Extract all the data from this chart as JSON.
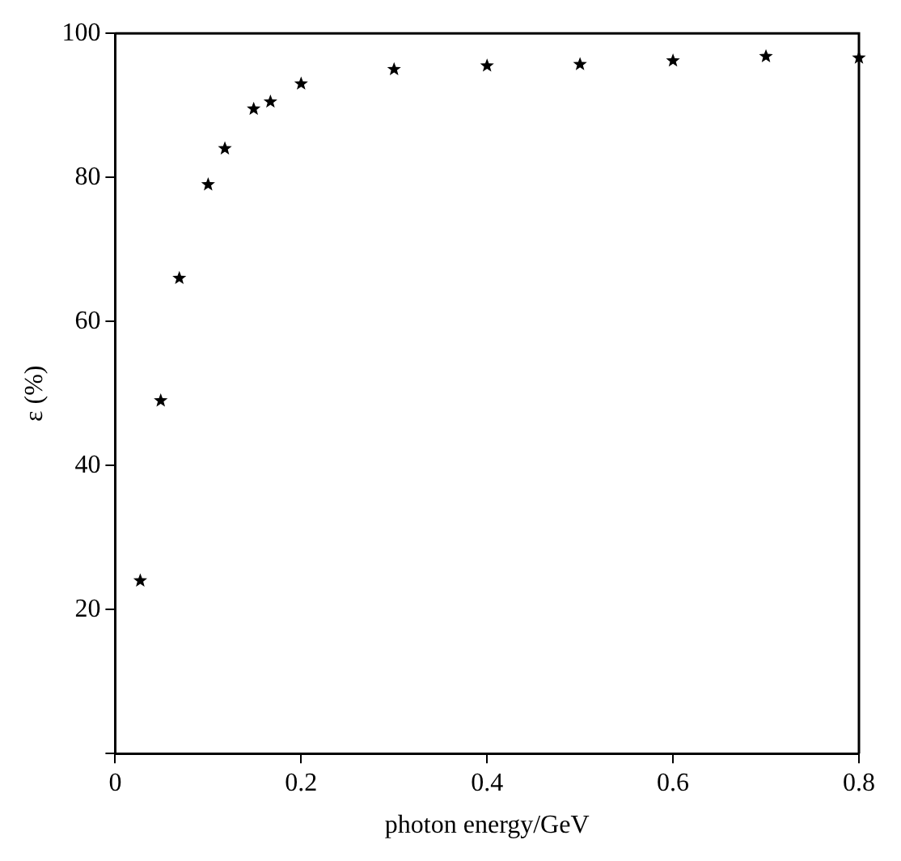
{
  "chart_data": {
    "type": "scatter",
    "xlabel": "photon energy/GeV",
    "ylabel": "ε (%)",
    "x": [
      0.027,
      0.049,
      0.069,
      0.1,
      0.118,
      0.149,
      0.167,
      0.2,
      0.3,
      0.4,
      0.5,
      0.6,
      0.7,
      0.8
    ],
    "series": [
      {
        "color": "#000000",
        "values": [
          24,
          49,
          66,
          79,
          84,
          89.5,
          90.5,
          93,
          95,
          95.5,
          95.7,
          96.2,
          96.8,
          96.6
        ]
      }
    ],
    "xlim": [
      0,
      0.8
    ],
    "xticks": [
      0,
      0.2,
      0.4,
      0.6,
      0.8
    ],
    "ylim": [
      0,
      100
    ],
    "yticks": [
      {
        "value": 0,
        "label": null
      },
      20,
      40,
      60,
      80,
      100
    ],
    "marker": "star",
    "grid": false,
    "legend": false
  }
}
